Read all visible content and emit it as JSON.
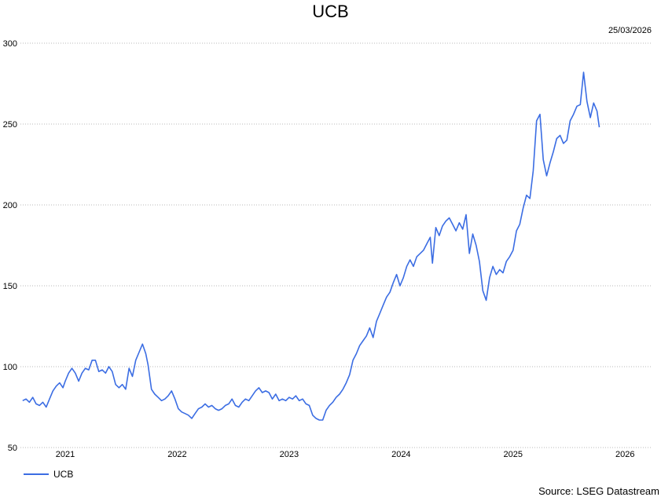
{
  "chart_data": {
    "type": "line",
    "title": "UCB",
    "date_label": "25/03/2026",
    "source": "Source: LSEG Datastream",
    "ylim": [
      50,
      300
    ],
    "yticks": [
      50,
      100,
      150,
      200,
      250,
      300
    ],
    "xlim": [
      2020.6,
      2026.23
    ],
    "xticks": [
      {
        "label": "2021",
        "value": 2021.0
      },
      {
        "label": "2022",
        "value": 2022.0
      },
      {
        "label": "2023",
        "value": 2023.0
      },
      {
        "label": "2024",
        "value": 2024.0
      },
      {
        "label": "2025",
        "value": 2025.0
      },
      {
        "label": "2026",
        "value": 2026.0
      }
    ],
    "grid": true,
    "legend_position": "bottom-left",
    "colors": {
      "series": "#3b6de3"
    },
    "series": [
      {
        "name": "UCB",
        "points": [
          [
            2020.62,
            79
          ],
          [
            2020.65,
            80
          ],
          [
            2020.68,
            78
          ],
          [
            2020.71,
            81
          ],
          [
            2020.74,
            77
          ],
          [
            2020.77,
            76
          ],
          [
            2020.8,
            78
          ],
          [
            2020.83,
            75
          ],
          [
            2020.86,
            80
          ],
          [
            2020.89,
            85
          ],
          [
            2020.92,
            88
          ],
          [
            2020.95,
            90
          ],
          [
            2020.98,
            87
          ],
          [
            2021.0,
            91
          ],
          [
            2021.03,
            96
          ],
          [
            2021.06,
            99
          ],
          [
            2021.09,
            96
          ],
          [
            2021.12,
            91
          ],
          [
            2021.15,
            96
          ],
          [
            2021.18,
            99
          ],
          [
            2021.21,
            98
          ],
          [
            2021.24,
            104
          ],
          [
            2021.27,
            104
          ],
          [
            2021.3,
            97
          ],
          [
            2021.33,
            98
          ],
          [
            2021.36,
            96
          ],
          [
            2021.39,
            100
          ],
          [
            2021.42,
            97
          ],
          [
            2021.45,
            89
          ],
          [
            2021.48,
            87
          ],
          [
            2021.51,
            89
          ],
          [
            2021.54,
            86
          ],
          [
            2021.57,
            99
          ],
          [
            2021.6,
            94
          ],
          [
            2021.63,
            104
          ],
          [
            2021.66,
            109
          ],
          [
            2021.69,
            114
          ],
          [
            2021.72,
            108
          ],
          [
            2021.74,
            101
          ],
          [
            2021.77,
            86
          ],
          [
            2021.8,
            83
          ],
          [
            2021.83,
            81
          ],
          [
            2021.86,
            79
          ],
          [
            2021.89,
            80
          ],
          [
            2021.92,
            82
          ],
          [
            2021.95,
            85
          ],
          [
            2021.98,
            80
          ],
          [
            2022.01,
            74
          ],
          [
            2022.04,
            72
          ],
          [
            2022.07,
            71
          ],
          [
            2022.1,
            70
          ],
          [
            2022.13,
            68
          ],
          [
            2022.16,
            71
          ],
          [
            2022.19,
            74
          ],
          [
            2022.22,
            75
          ],
          [
            2022.25,
            77
          ],
          [
            2022.28,
            75
          ],
          [
            2022.31,
            76
          ],
          [
            2022.34,
            74
          ],
          [
            2022.37,
            73
          ],
          [
            2022.4,
            74
          ],
          [
            2022.43,
            76
          ],
          [
            2022.46,
            77
          ],
          [
            2022.49,
            80
          ],
          [
            2022.52,
            76
          ],
          [
            2022.55,
            75
          ],
          [
            2022.58,
            78
          ],
          [
            2022.61,
            80
          ],
          [
            2022.64,
            79
          ],
          [
            2022.67,
            82
          ],
          [
            2022.7,
            85
          ],
          [
            2022.73,
            87
          ],
          [
            2022.76,
            84
          ],
          [
            2022.79,
            85
          ],
          [
            2022.82,
            84
          ],
          [
            2022.85,
            80
          ],
          [
            2022.88,
            83
          ],
          [
            2022.91,
            79
          ],
          [
            2022.94,
            80
          ],
          [
            2022.97,
            79
          ],
          [
            2023.0,
            81
          ],
          [
            2023.03,
            80
          ],
          [
            2023.06,
            82
          ],
          [
            2023.09,
            79
          ],
          [
            2023.12,
            80
          ],
          [
            2023.15,
            77
          ],
          [
            2023.18,
            76
          ],
          [
            2023.21,
            70
          ],
          [
            2023.24,
            68
          ],
          [
            2023.27,
            67
          ],
          [
            2023.3,
            67
          ],
          [
            2023.33,
            73
          ],
          [
            2023.36,
            76
          ],
          [
            2023.39,
            78
          ],
          [
            2023.42,
            81
          ],
          [
            2023.45,
            83
          ],
          [
            2023.48,
            86
          ],
          [
            2023.51,
            90
          ],
          [
            2023.54,
            95
          ],
          [
            2023.57,
            104
          ],
          [
            2023.6,
            108
          ],
          [
            2023.63,
            113
          ],
          [
            2023.66,
            116
          ],
          [
            2023.69,
            119
          ],
          [
            2023.72,
            124
          ],
          [
            2023.75,
            118
          ],
          [
            2023.78,
            128
          ],
          [
            2023.81,
            133
          ],
          [
            2023.84,
            138
          ],
          [
            2023.87,
            143
          ],
          [
            2023.9,
            146
          ],
          [
            2023.93,
            152
          ],
          [
            2023.96,
            157
          ],
          [
            2023.99,
            150
          ],
          [
            2024.02,
            155
          ],
          [
            2024.05,
            162
          ],
          [
            2024.08,
            166
          ],
          [
            2024.11,
            162
          ],
          [
            2024.14,
            168
          ],
          [
            2024.17,
            170
          ],
          [
            2024.2,
            172
          ],
          [
            2024.23,
            176
          ],
          [
            2024.26,
            180
          ],
          [
            2024.28,
            164
          ],
          [
            2024.31,
            186
          ],
          [
            2024.34,
            181
          ],
          [
            2024.37,
            187
          ],
          [
            2024.4,
            190
          ],
          [
            2024.43,
            192
          ],
          [
            2024.46,
            188
          ],
          [
            2024.49,
            184
          ],
          [
            2024.52,
            189
          ],
          [
            2024.55,
            185
          ],
          [
            2024.58,
            194
          ],
          [
            2024.61,
            170
          ],
          [
            2024.64,
            182
          ],
          [
            2024.67,
            175
          ],
          [
            2024.7,
            165
          ],
          [
            2024.73,
            147
          ],
          [
            2024.76,
            141
          ],
          [
            2024.79,
            155
          ],
          [
            2024.82,
            162
          ],
          [
            2024.85,
            157
          ],
          [
            2024.88,
            160
          ],
          [
            2024.91,
            158
          ],
          [
            2024.94,
            165
          ],
          [
            2024.97,
            168
          ],
          [
            2025.0,
            172
          ],
          [
            2025.03,
            184
          ],
          [
            2025.06,
            188
          ],
          [
            2025.09,
            198
          ],
          [
            2025.12,
            206
          ],
          [
            2025.15,
            204
          ],
          [
            2025.18,
            221
          ],
          [
            2025.21,
            252
          ],
          [
            2025.24,
            256
          ],
          [
            2025.27,
            228
          ],
          [
            2025.3,
            218
          ],
          [
            2025.33,
            226
          ],
          [
            2025.36,
            233
          ],
          [
            2025.39,
            241
          ],
          [
            2025.42,
            243
          ],
          [
            2025.45,
            238
          ],
          [
            2025.48,
            240
          ],
          [
            2025.51,
            252
          ],
          [
            2025.54,
            256
          ],
          [
            2025.57,
            261
          ],
          [
            2025.6,
            262
          ],
          [
            2025.63,
            282
          ],
          [
            2025.66,
            264
          ],
          [
            2025.69,
            254
          ],
          [
            2025.72,
            263
          ],
          [
            2025.75,
            258
          ],
          [
            2025.77,
            248
          ]
        ]
      }
    ]
  }
}
